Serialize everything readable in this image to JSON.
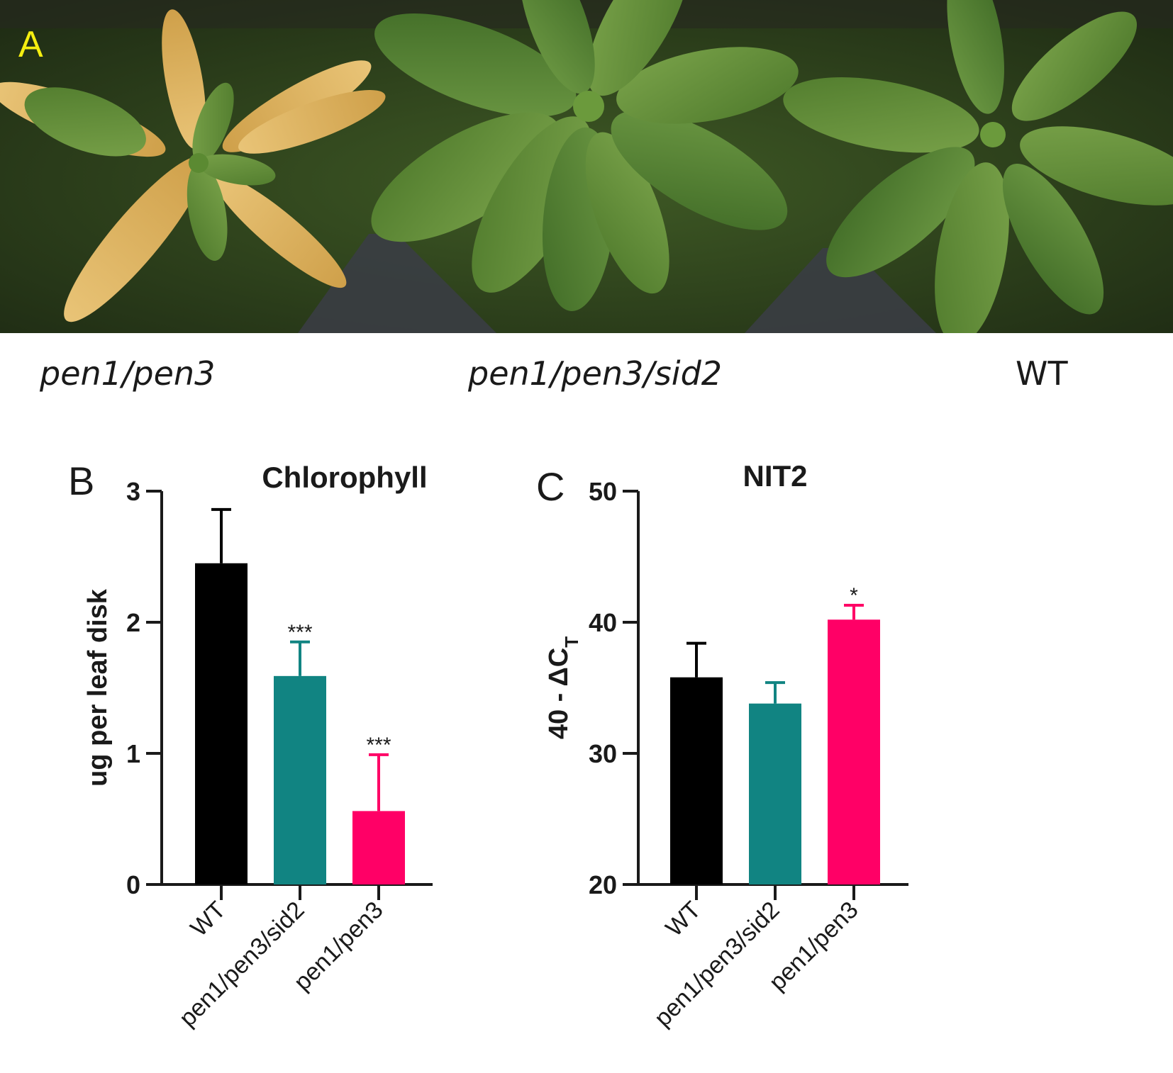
{
  "panel_a": {
    "letter": "A",
    "genotype_labels": [
      {
        "text": "pen1/pen3",
        "italic": true
      },
      {
        "text": "pen1/pen3/sid2",
        "italic": true
      },
      {
        "text": "WT",
        "italic": false
      }
    ],
    "colors": {
      "letter": "#f5ee10"
    }
  },
  "chart_data": [
    {
      "type": "bar",
      "panel_letter": "B",
      "title": "Chlorophyll",
      "xlabel": "",
      "ylabel": "ug per leaf disk",
      "ylim": [
        0,
        3
      ],
      "yticks": [
        0,
        1,
        2,
        3
      ],
      "categories": [
        "WT",
        "pen1/pen3/sid2",
        "pen1/pen3"
      ],
      "values": [
        2.45,
        1.59,
        0.56
      ],
      "error": [
        0.41,
        0.26,
        0.43
      ],
      "significance": [
        "",
        "***",
        "***"
      ],
      "colors": [
        "#000000",
        "#118482",
        "#ff0066"
      ],
      "grid": false,
      "legend": "none"
    },
    {
      "type": "bar",
      "panel_letter": "C",
      "title": "NIT2",
      "xlabel": "",
      "ylabel": "40 - ΔC",
      "ylabel_subscript": "T",
      "ylim": [
        20,
        50
      ],
      "yticks": [
        20,
        30,
        40,
        50
      ],
      "categories": [
        "WT",
        "pen1/pen3/sid2",
        "pen1/pen3"
      ],
      "values": [
        35.8,
        33.8,
        40.2
      ],
      "error": [
        2.6,
        1.6,
        1.1
      ],
      "significance": [
        "",
        "",
        "*"
      ],
      "colors": [
        "#000000",
        "#118482",
        "#ff0066"
      ],
      "grid": false,
      "legend": "none"
    }
  ]
}
